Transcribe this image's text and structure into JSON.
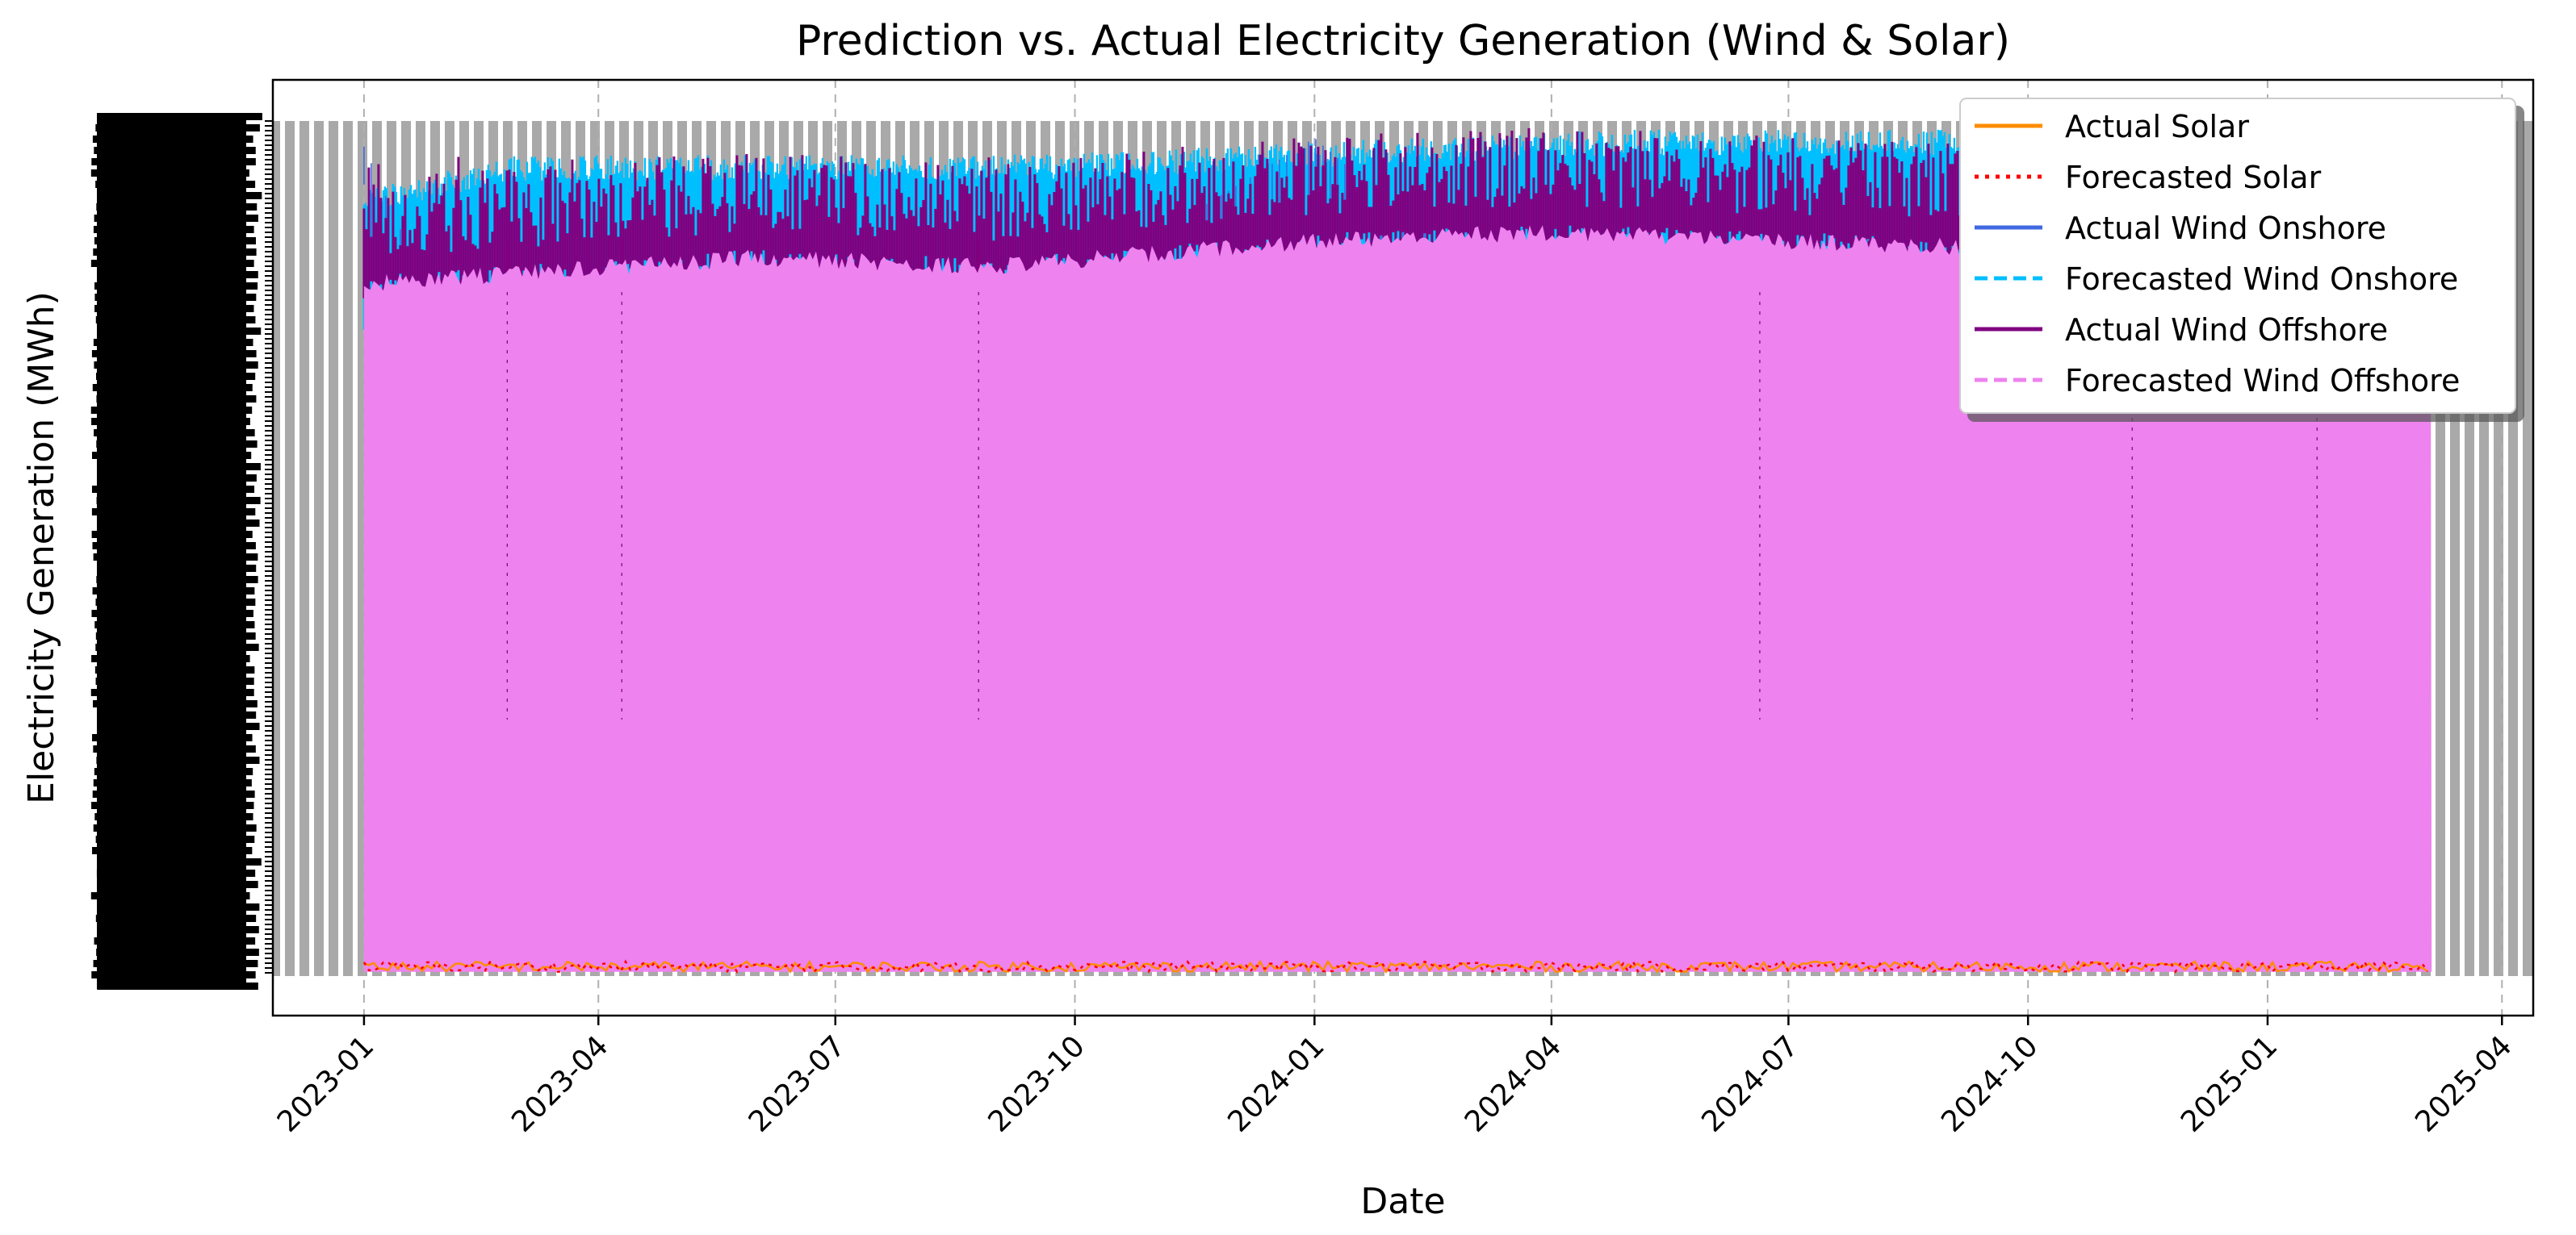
{
  "chart_data": {
    "type": "line",
    "title": "Prediction vs. Actual Electricity Generation (Wind & Solar)",
    "xlabel": "Date",
    "ylabel": "Electricity Generation (MWh)",
    "x_tick_labels": [
      "2023-01",
      "2023-04",
      "2023-07",
      "2023-10",
      "2024-01",
      "2024-04",
      "2024-07",
      "2024-10",
      "2025-01",
      "2025-04"
    ],
    "x_range": [
      "2022-11-27",
      "2025-04-13"
    ],
    "data_range": [
      "2023-01-01",
      "2025-03-05"
    ],
    "grid": true,
    "grid_axis": "x",
    "legend_position": "top-right",
    "y_axis_note": "y tick labels are overprinted and illegible",
    "series": [
      {
        "name": "Actual Solar",
        "color": "#ff8c00",
        "style": "solid",
        "points": [
          [
            "2023-01-01",
            0.02
          ],
          [
            "2023-03-01",
            0.01
          ],
          [
            "2023-06-01",
            0.02
          ],
          [
            "2023-09-01",
            0.01
          ],
          [
            "2024-01-01",
            0.01
          ],
          [
            "2024-04-01",
            0.02
          ],
          [
            "2024-08-01",
            0.01
          ],
          [
            "2024-12-01",
            0.01
          ],
          [
            "2025-03-05",
            0.01
          ]
        ]
      },
      {
        "name": "Forecasted Solar",
        "color": "#ff0000",
        "style": "dotted",
        "points": [
          [
            "2023-01-01",
            0.01
          ],
          [
            "2023-03-01",
            0.02
          ],
          [
            "2023-06-01",
            0.01
          ],
          [
            "2023-09-01",
            0.02
          ],
          [
            "2024-01-01",
            0.01
          ],
          [
            "2024-04-01",
            0.01
          ],
          [
            "2024-08-01",
            0.02
          ],
          [
            "2024-12-01",
            0.01
          ],
          [
            "2025-03-05",
            0.02
          ]
        ]
      },
      {
        "name": "Actual Wind Onshore",
        "color": "#4169e1",
        "style": "solid",
        "points": [
          [
            "2023-01-01",
            0.93
          ],
          [
            "2023-02-25",
            0.55
          ],
          [
            "2023-05-01",
            0.8
          ],
          [
            "2023-08-25",
            0.7
          ],
          [
            "2024-01-01",
            0.94
          ],
          [
            "2024-05-10",
            0.6
          ],
          [
            "2024-08-10",
            0.72
          ],
          [
            "2024-11-10",
            0.58
          ],
          [
            "2025-01-20",
            0.65
          ],
          [
            "2025-03-05",
            0.9
          ]
        ]
      },
      {
        "name": "Forecasted Wind Onshore",
        "color": "#00bfff",
        "style": "dashed",
        "points": [
          [
            "2023-01-01",
            0.92
          ],
          [
            "2023-03-01",
            0.96
          ],
          [
            "2023-06-01",
            0.96
          ],
          [
            "2023-09-01",
            0.96
          ],
          [
            "2023-12-01",
            0.97
          ],
          [
            "2024-02-01",
            0.98
          ],
          [
            "2024-05-01",
            0.99
          ],
          [
            "2024-08-01",
            0.99
          ],
          [
            "2024-10-01",
            0.99
          ],
          [
            "2025-01-01",
            0.99
          ],
          [
            "2025-03-05",
            0.99
          ]
        ]
      },
      {
        "name": "Actual Wind Offshore",
        "color": "#800080",
        "style": "solid",
        "points": [
          [
            "2023-01-01",
            0.85
          ],
          [
            "2023-02-25",
            0.53
          ],
          [
            "2023-04-10",
            0.47
          ],
          [
            "2023-06-01",
            0.55
          ],
          [
            "2023-09-01",
            0.6
          ],
          [
            "2024-01-01",
            0.88
          ],
          [
            "2024-06-20",
            0.65
          ],
          [
            "2024-08-01",
            0.58
          ],
          [
            "2025-03-05",
            0.86
          ]
        ]
      },
      {
        "name": "Forecasted Wind Offshore",
        "color": "#ee82ee",
        "style": "dashed",
        "points": [
          [
            "2023-01-01",
            0.82
          ],
          [
            "2023-06-01",
            0.85
          ],
          [
            "2023-09-01",
            0.84
          ],
          [
            "2024-01-01",
            0.87
          ],
          [
            "2024-04-01",
            0.88
          ],
          [
            "2024-07-01",
            0.87
          ],
          [
            "2024-10-01",
            0.86
          ],
          [
            "2025-03-05",
            0.88
          ]
        ]
      }
    ]
  }
}
